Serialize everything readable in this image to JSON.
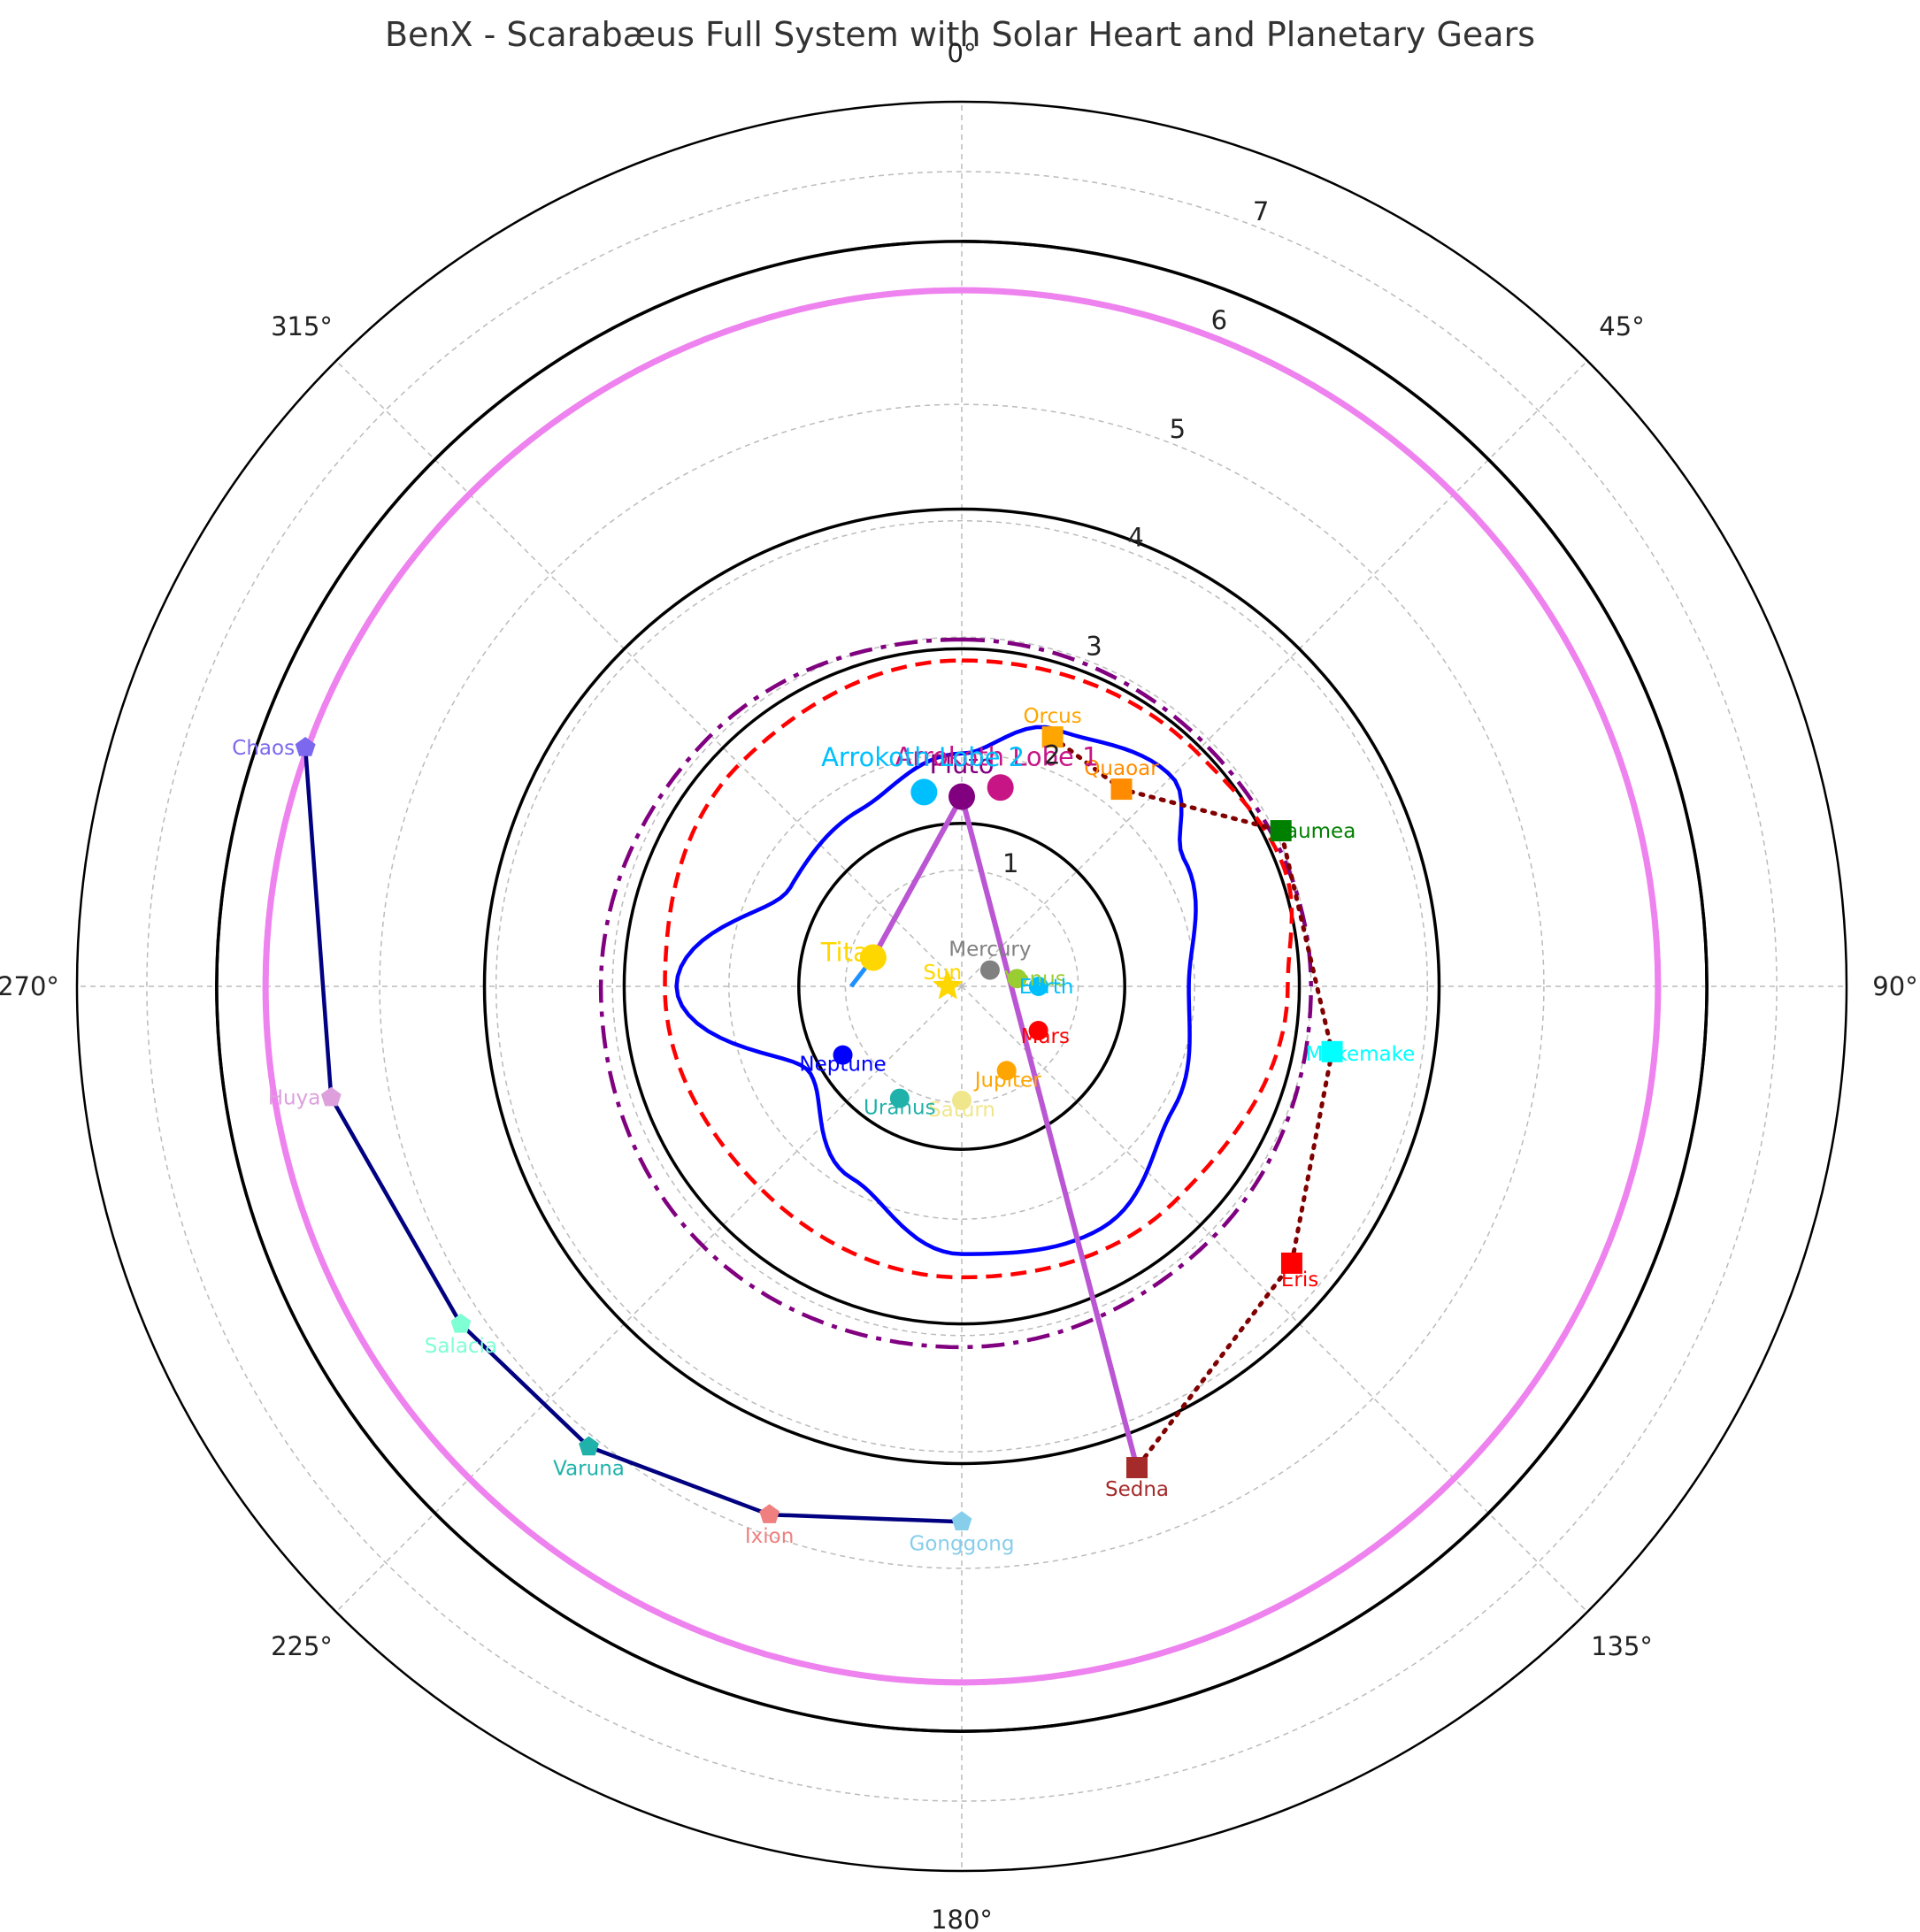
{
  "chart_data": {
    "type": "polar",
    "title": "BenX - Scarabæus Full System with Solar Heart and Planetary Gears",
    "rlim": [
      0,
      7.6
    ],
    "r_ticks": [
      "1",
      "2",
      "3",
      "4",
      "5",
      "6",
      "7"
    ],
    "theta_ticks": [
      "0°",
      "45°",
      "90°",
      "135°",
      "180°",
      "225°",
      "270°",
      "315°"
    ],
    "theta_direction": "clockwise",
    "theta_zero": "top",
    "grid": true,
    "reference_circles": [
      {
        "r": 1.4,
        "color": "#000000"
      },
      {
        "r": 2.9,
        "color": "#000000"
      },
      {
        "r": 4.1,
        "color": "#000000"
      },
      {
        "r": 6.4,
        "color": "#000000"
      },
      {
        "r": 5.98,
        "color": "#ee82ee"
      }
    ],
    "open_arcs": [
      {
        "r": 6.4,
        "theta_start": 0,
        "theta_end": 356,
        "color": "#000000"
      }
    ],
    "closed_curves": [
      {
        "style": "dashdot",
        "color": "#800080",
        "radius_deg": [
          [
            0,
            2.98
          ],
          [
            45,
            2.95
          ],
          [
            90,
            3.0
          ],
          [
            135,
            3.05
          ],
          [
            180,
            3.1
          ],
          [
            225,
            3.15
          ],
          [
            270,
            3.1
          ],
          [
            315,
            3.05
          ]
        ]
      },
      {
        "style": "dashed",
        "color": "#ff0000",
        "radius_deg": [
          [
            0,
            2.8
          ],
          [
            45,
            2.85
          ],
          [
            70,
            2.95
          ],
          [
            90,
            2.8
          ],
          [
            135,
            2.6
          ],
          [
            180,
            2.5
          ],
          [
            225,
            2.45
          ],
          [
            270,
            2.55
          ],
          [
            315,
            2.7
          ]
        ]
      },
      {
        "style": "solid",
        "color": "#0000ff",
        "radius_deg": [
          [
            0,
            2.0
          ],
          [
            20,
            2.35
          ],
          [
            45,
            2.55
          ],
          [
            60,
            2.2
          ],
          [
            90,
            1.95
          ],
          [
            120,
            2.1
          ],
          [
            150,
            2.4
          ],
          [
            180,
            2.3
          ],
          [
            210,
            1.9
          ],
          [
            240,
            1.5
          ],
          [
            270,
            2.45
          ],
          [
            300,
            1.7
          ],
          [
            330,
            1.75
          ]
        ]
      }
    ],
    "points": [
      {
        "name": "Sun",
        "theta": 270,
        "r": 0.12,
        "color": "#ffd700",
        "marker": "star"
      },
      {
        "name": "Mercury",
        "theta": 60,
        "r": 0.28,
        "color": "#808080",
        "marker": "circle"
      },
      {
        "name": "Venus",
        "theta": 82,
        "r": 0.48,
        "color": "#9acd32",
        "marker": "circle"
      },
      {
        "name": "Earth",
        "theta": 90,
        "r": 0.66,
        "color": "#00bfff",
        "marker": "circle"
      },
      {
        "name": "Mars",
        "theta": 120,
        "r": 0.76,
        "color": "#ff0000",
        "marker": "circle"
      },
      {
        "name": "Jupiter",
        "theta": 152,
        "r": 0.82,
        "color": "#ffa500",
        "marker": "circle"
      },
      {
        "name": "Saturn",
        "theta": 180,
        "r": 0.98,
        "color": "#f0e68c",
        "marker": "circle"
      },
      {
        "name": "Uranus",
        "theta": 209,
        "r": 1.1,
        "color": "#20b2aa",
        "marker": "circle"
      },
      {
        "name": "Neptune",
        "theta": 240,
        "r": 1.18,
        "color": "#0000ff",
        "marker": "circle"
      },
      {
        "name": "Orcus",
        "theta": 20,
        "r": 2.28,
        "color": "#ffa500",
        "marker": "square"
      },
      {
        "name": "Quaoar",
        "theta": 39,
        "r": 2.18,
        "color": "#ff8c00",
        "marker": "square"
      },
      {
        "name": "Haumea",
        "theta": 64,
        "r": 3.05,
        "color": "#008000",
        "marker": "square"
      },
      {
        "name": "Makemake",
        "theta": 100,
        "r": 3.23,
        "color": "#00ffff",
        "marker": "square"
      },
      {
        "name": "Eris",
        "theta": 130,
        "r": 3.7,
        "color": "#ff0000",
        "marker": "square"
      },
      {
        "name": "Sedna",
        "theta": 160,
        "r": 4.4,
        "color": "#a52a2a",
        "marker": "square"
      },
      {
        "name": "Chaos",
        "theta": 290,
        "r": 6.0,
        "color": "#7b68ee",
        "marker": "pentagon"
      },
      {
        "name": "Huya",
        "theta": 260,
        "r": 5.5,
        "color": "#dda0dd",
        "marker": "pentagon"
      },
      {
        "name": "Salacia",
        "theta": 236,
        "r": 5.19,
        "color": "#7fffd4",
        "marker": "pentagon"
      },
      {
        "name": "Varuna",
        "theta": 219,
        "r": 5.09,
        "color": "#20b2aa",
        "marker": "pentagon"
      },
      {
        "name": "Ixion",
        "theta": 200,
        "r": 4.83,
        "color": "#f08080",
        "marker": "pentagon"
      },
      {
        "name": "Gonggong",
        "theta": 180,
        "r": 4.6,
        "color": "#87ceeb",
        "marker": "pentagon"
      },
      {
        "name": "Pluto",
        "theta": 0,
        "r": 1.63,
        "color": "#800080",
        "marker": "circle-large"
      },
      {
        "name": "Arrokoth Lobe 1",
        "theta": 11,
        "r": 1.74,
        "color": "#c71585",
        "marker": "circle-large"
      },
      {
        "name": "Arrokoth Lobe 2",
        "theta": 349,
        "r": 1.7,
        "color": "#00bfff",
        "marker": "circle-large"
      },
      {
        "name": "Titan",
        "theta": 288,
        "r": 0.8,
        "color": "#ffd700",
        "marker": "circle-large"
      }
    ],
    "big_labels": [
      {
        "text": "Pluto",
        "theta": 0,
        "r": 1.83,
        "color": "#800080"
      },
      {
        "text": "Arrokoth Lobe 1",
        "theta": 9,
        "r": 1.92,
        "color": "#c71585"
      },
      {
        "text": "Arrokoth Lobe 2",
        "theta": 350,
        "r": 1.92,
        "color": "#00bfff"
      },
      {
        "text": "Titan",
        "theta": 283,
        "r": 0.96,
        "color": "#ffd700"
      }
    ],
    "series": [
      {
        "style": "dotted",
        "color": "#800000",
        "bodies": [
          "Orcus",
          "Quaoar",
          "Haumea",
          "Makemake",
          "Eris",
          "Sedna"
        ]
      },
      {
        "style": "solid",
        "color": "#000080",
        "bodies": [
          "Chaos",
          "Huya",
          "Salacia",
          "Varuna",
          "Ixion",
          "Gonggong"
        ]
      },
      {
        "style": "solid",
        "color": "#ba55d3",
        "bodies": [
          "Titan",
          "Pluto",
          "Sedna"
        ]
      }
    ],
    "tail": {
      "color": "#1e90ff",
      "polyline": [
        [
          270,
          0.95
        ],
        [
          280,
          0.85
        ],
        [
          288,
          0.8
        ]
      ]
    }
  }
}
